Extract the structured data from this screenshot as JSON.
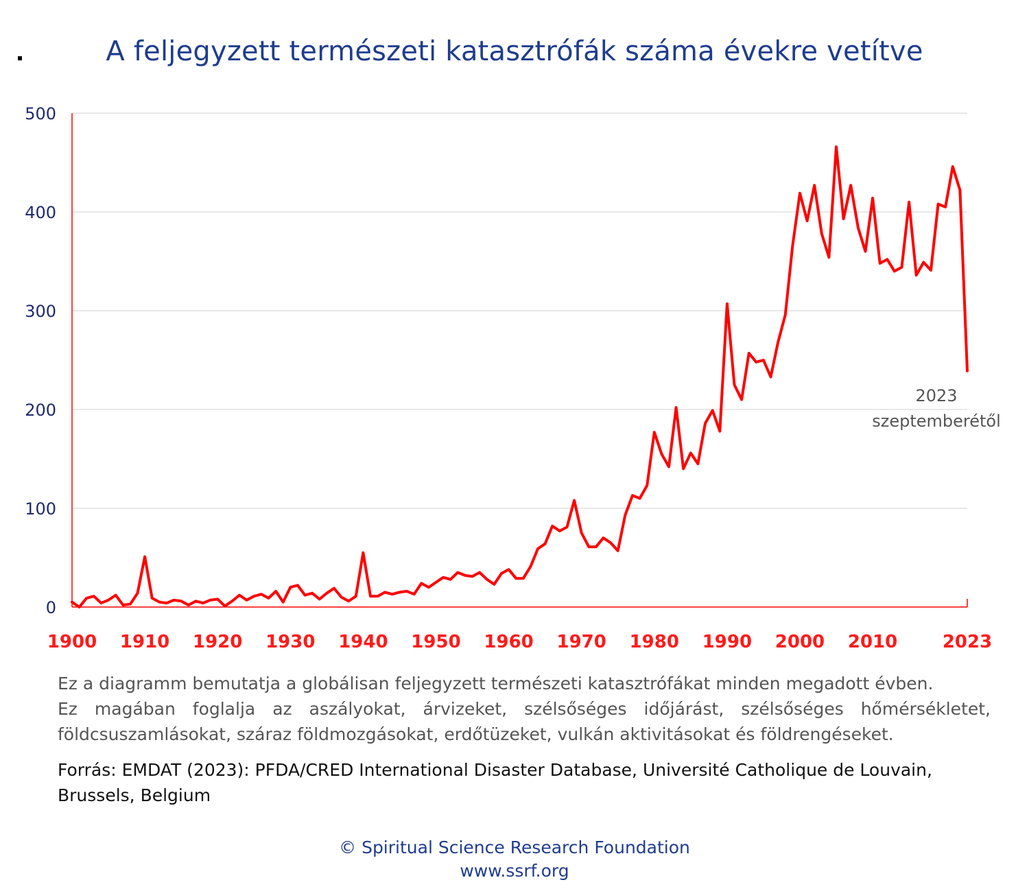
{
  "title": "A feljegyzett természeti katasztrófák száma évekre vetítve",
  "description": [
    "Ez a diagramm bemutatja a globálisan feljegyzett természeti katasztrófákat minden megadott évben.",
    "Ez magában foglalja az aszályokat, árvizeket, szélsőséges időjárást, szélsőséges hőmérsékletet,",
    "földcsuszamlásokat, száraz földmozgásokat, erdőtüzeket, vulkán aktivitásokat és földrengéseket."
  ],
  "source": [
    "Forrás: EMDAT (2023): PFDA/CRED International Disaster Database, Université Catholique de Louvain,",
    "Brussels, Belgium"
  ],
  "footer": {
    "copyright": "© Spiritual Science Research Foundation",
    "url": "www.ssrf.org"
  },
  "colors": {
    "title": "#1f3d8e",
    "line": "#ff0000",
    "axis_labels_x": "#ff1a1a",
    "axis_labels_y": "#1f2a6e",
    "grid": "#d9d9d9"
  },
  "chart_data": {
    "type": "line",
    "title": "A feljegyzett természeti katasztrófák száma évekre vetítve",
    "xlabel": "",
    "ylabel": "",
    "xlim": [
      1900,
      2023
    ],
    "ylim": [
      0,
      500
    ],
    "grid": true,
    "y_ticks": [
      0,
      100,
      200,
      300,
      400,
      500
    ],
    "x_tick_labels": [
      "1900",
      "1910",
      "1920",
      "1930",
      "1940",
      "1950",
      "1960",
      "1970",
      "1980",
      "1990",
      "2000",
      "2010",
      "2023"
    ],
    "x_tick_values": [
      1900,
      1910,
      1920,
      1930,
      1940,
      1950,
      1960,
      1970,
      1980,
      1990,
      2000,
      2010,
      2023
    ],
    "annotation": {
      "x": 2023,
      "lines": [
        "2023",
        "szeptemberétől"
      ]
    },
    "series": [
      {
        "x": [
          1900,
          1901,
          1902,
          1903,
          1904,
          1905,
          1906,
          1907,
          1908,
          1909,
          1910,
          1911,
          1912,
          1913,
          1914,
          1915,
          1916,
          1917,
          1918,
          1919,
          1920,
          1921,
          1922,
          1923,
          1924,
          1925,
          1926,
          1927,
          1928,
          1929,
          1930,
          1931,
          1932,
          1933,
          1934,
          1935,
          1936,
          1937,
          1938,
          1939,
          1940,
          1941,
          1942,
          1943,
          1944,
          1945,
          1946,
          1947,
          1948,
          1949,
          1950,
          1951,
          1952,
          1953,
          1954,
          1955,
          1956,
          1957,
          1958,
          1959,
          1960,
          1961,
          1962,
          1963,
          1964,
          1965,
          1966,
          1967,
          1968,
          1969,
          1970,
          1971,
          1972,
          1973,
          1974,
          1975,
          1976,
          1977,
          1978,
          1979,
          1980,
          1981,
          1982,
          1983,
          1984,
          1985,
          1986,
          1987,
          1988,
          1989,
          1990,
          1991,
          1992,
          1993,
          1994,
          1995,
          1996,
          1997,
          1998,
          1999,
          2000,
          2001,
          2002,
          2003,
          2004,
          2005,
          2006,
          2007,
          2008,
          2009,
          2010,
          2011,
          2012,
          2013,
          2014,
          2015,
          2016,
          2017,
          2018,
          2019,
          2020,
          2021,
          2022,
          2023
        ],
        "values": [
          5,
          0,
          9,
          11,
          4,
          7,
          12,
          2,
          3,
          14,
          51,
          9,
          5,
          4,
          7,
          6,
          2,
          6,
          4,
          7,
          8,
          1,
          6,
          12,
          7,
          11,
          13,
          9,
          16,
          5,
          20,
          22,
          12,
          14,
          8,
          14,
          19,
          10,
          6,
          11,
          55,
          11,
          11,
          15,
          13,
          15,
          16,
          13,
          24,
          20,
          25,
          30,
          28,
          35,
          32,
          31,
          35,
          28,
          23,
          34,
          38,
          29,
          29,
          41,
          59,
          64,
          82,
          77,
          81,
          108,
          75,
          61,
          61,
          70,
          65,
          57,
          93,
          113,
          110,
          123,
          177,
          155,
          142,
          202,
          140,
          156,
          145,
          186,
          199,
          178,
          307,
          225,
          210,
          257,
          248,
          250,
          233,
          268,
          296,
          366,
          419,
          391,
          427,
          378,
          354,
          466,
          393,
          427,
          384,
          360,
          414,
          348,
          352,
          340,
          344,
          410,
          336,
          349,
          341,
          408,
          405,
          446,
          422,
          239
        ]
      }
    ]
  }
}
